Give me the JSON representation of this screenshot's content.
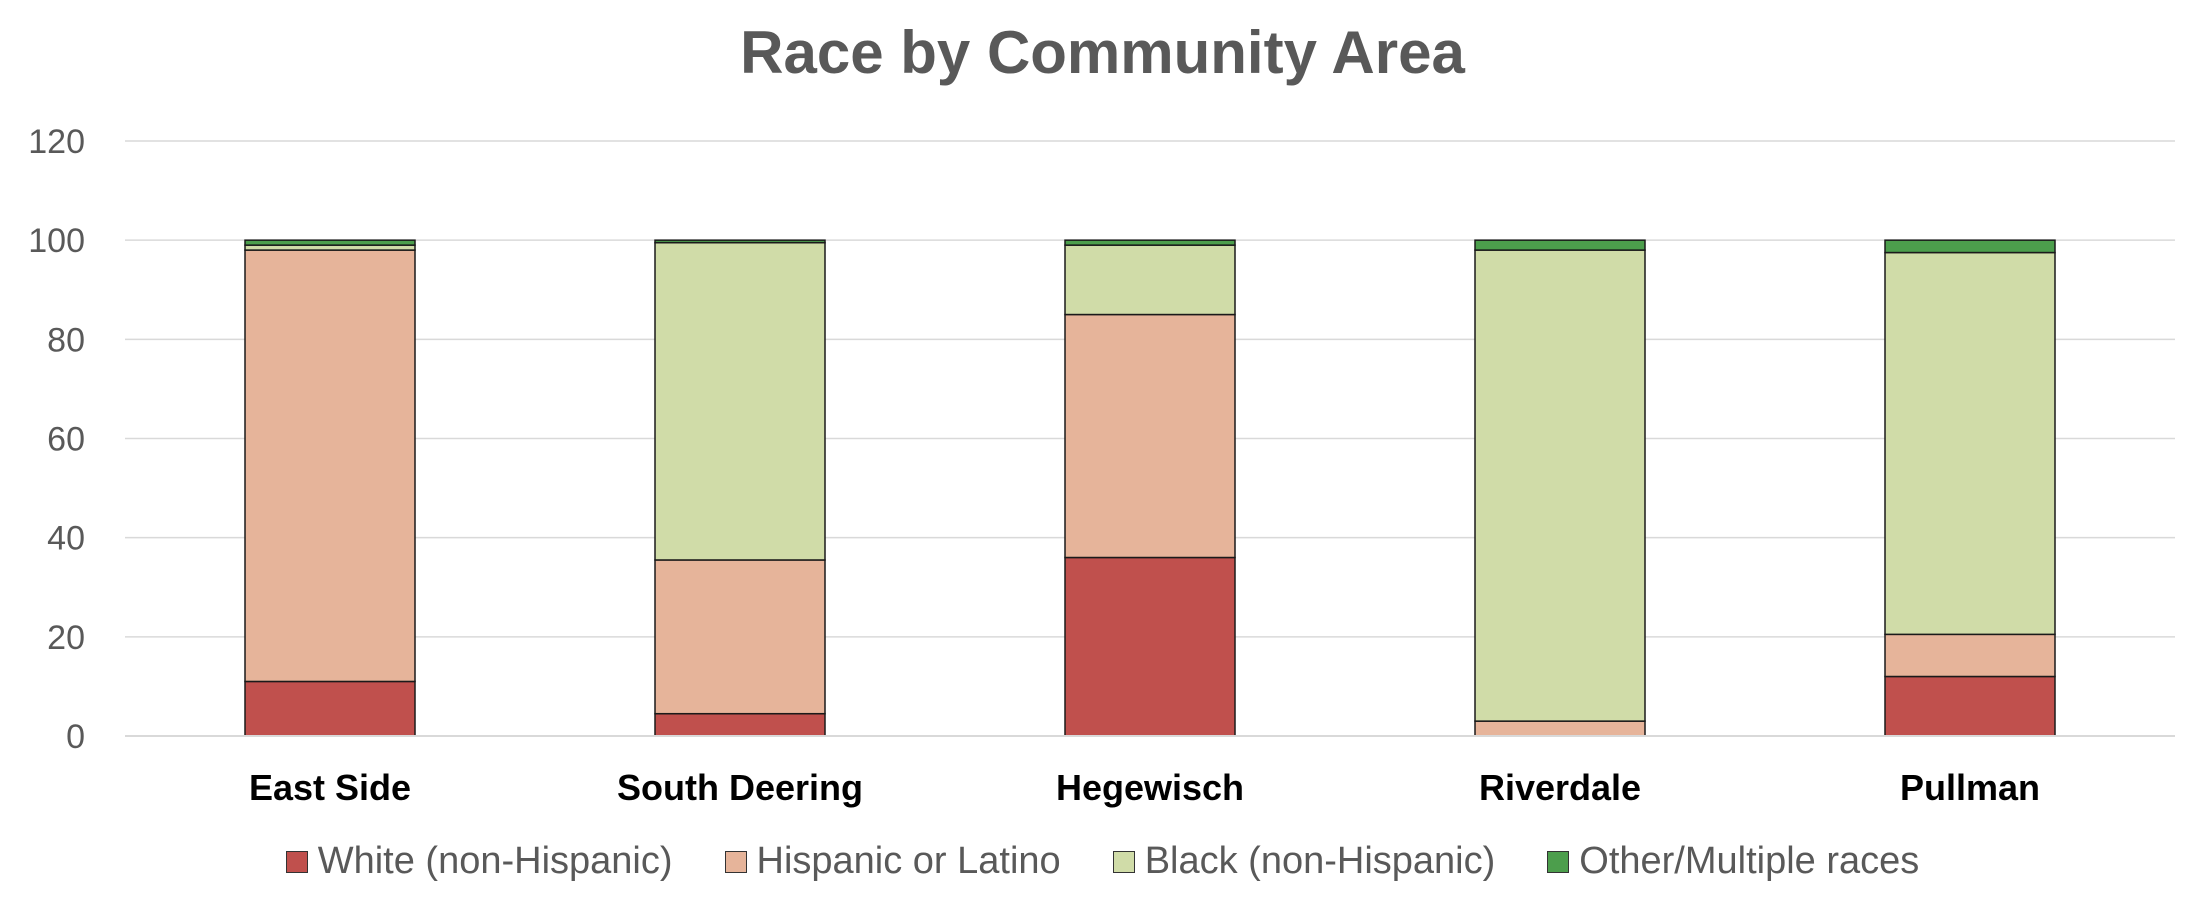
{
  "chart_data": {
    "type": "bar",
    "stacked": true,
    "title": "Race by Community Area",
    "xlabel": "",
    "ylabel": "",
    "ylim": [
      0,
      120
    ],
    "yticks": [
      0,
      20,
      40,
      60,
      80,
      100,
      120
    ],
    "categories": [
      "East Side",
      "South Deering",
      "Hegewisch",
      "Riverdale",
      "Pullman"
    ],
    "series": [
      {
        "name": "White (non-Hispanic)",
        "color": "#C0504D",
        "values": [
          11,
          4.5,
          36,
          0,
          12
        ]
      },
      {
        "name": "Hispanic or Latino",
        "color": "#E6B49A",
        "values": [
          87,
          31,
          49,
          3,
          8.5
        ]
      },
      {
        "name": "Black (non-Hispanic)",
        "color": "#D0DCA8",
        "values": [
          1,
          64,
          14,
          95,
          77
        ]
      },
      {
        "name": "Other/Multiple races",
        "color": "#4C9E4C",
        "values": [
          1,
          0.5,
          1,
          2,
          2.5
        ]
      }
    ],
    "legend_position": "bottom",
    "grid": true
  }
}
